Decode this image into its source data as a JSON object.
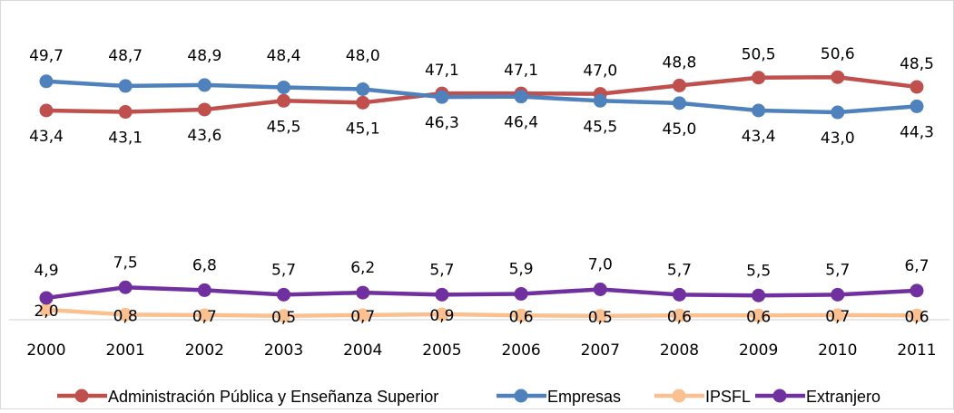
{
  "chart_data": {
    "type": "line",
    "title": "",
    "xlabel": "",
    "ylabel": "",
    "categories": [
      "2000",
      "2001",
      "2002",
      "2003",
      "2004",
      "2005",
      "2006",
      "2007",
      "2008",
      "2009",
      "2010",
      "2011"
    ],
    "ylim": [
      0,
      60
    ],
    "grid": false,
    "legend_position": "bottom",
    "series": [
      {
        "name": "Administración Pública y Enseñanza Superior",
        "color": "#C0504D",
        "values": [
          43.4,
          43.1,
          43.6,
          45.5,
          45.1,
          47.1,
          47.1,
          47.0,
          48.8,
          50.5,
          50.6,
          48.5
        ],
        "labels": [
          "43,4",
          "43,1",
          "43,6",
          "45,5",
          "45,1",
          "47,1",
          "47,1",
          "47,0",
          "48,8",
          "50,5",
          "50,6",
          "48,5"
        ]
      },
      {
        "name": "Empresas",
        "color": "#4F81BD",
        "values": [
          49.7,
          48.7,
          48.9,
          48.4,
          48.0,
          46.3,
          46.4,
          45.5,
          45.0,
          43.4,
          43.0,
          44.3
        ],
        "labels": [
          "49,7",
          "48,7",
          "48,9",
          "48,4",
          "48,0",
          "46,3",
          "46,4",
          "45,5",
          "45,0",
          "43,4",
          "43,0",
          "44,3"
        ]
      },
      {
        "name": "IPSFL",
        "color": "#FAC090",
        "values": [
          2.0,
          0.8,
          0.7,
          0.5,
          0.7,
          0.9,
          0.6,
          0.5,
          0.6,
          0.6,
          0.7,
          0.6
        ],
        "labels": [
          "2,0",
          "0,8",
          "0,7",
          "0,5",
          "0,7",
          "0,9",
          "0,6",
          "0,5",
          "0,6",
          "0,6",
          "0,7",
          "0,6"
        ]
      },
      {
        "name": "Extranjero",
        "color": "#7030A0",
        "values": [
          4.9,
          7.5,
          6.8,
          5.7,
          6.2,
          5.7,
          5.9,
          7.0,
          5.7,
          5.5,
          5.7,
          6.7
        ],
        "labels": [
          "4,9",
          "7,5",
          "6,8",
          "5,7",
          "6,2",
          "5,7",
          "5,9",
          "7,0",
          "5,7",
          "5,5",
          "5,7",
          "6,7"
        ]
      }
    ]
  }
}
